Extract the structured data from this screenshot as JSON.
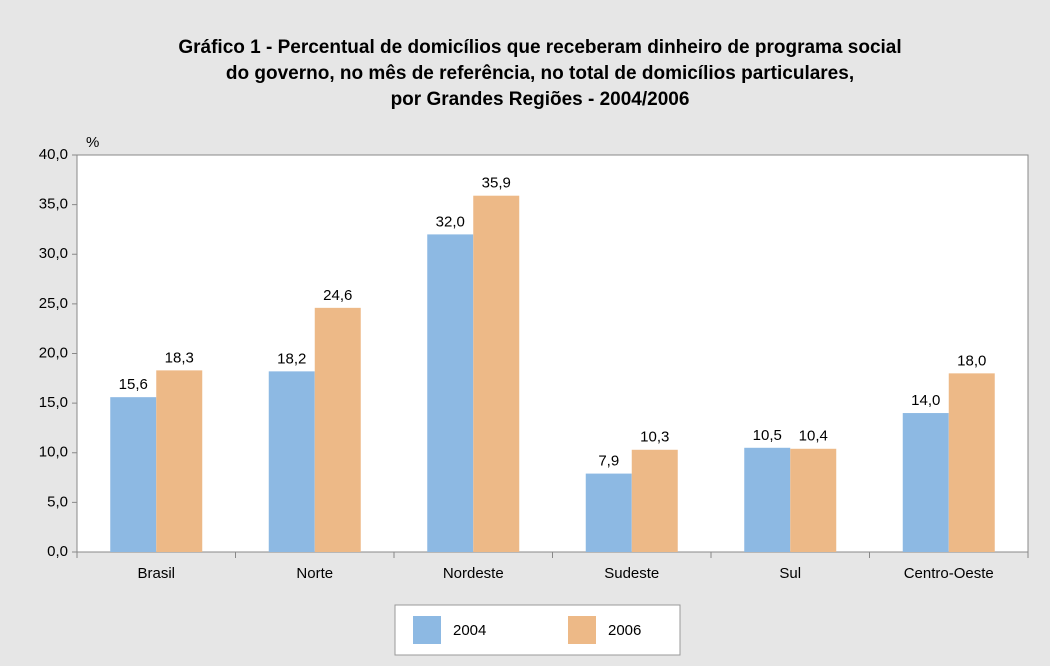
{
  "chart_data": {
    "type": "bar",
    "title": [
      "Gráfico 1 - Percentual de domicílios que receberam dinheiro de programa social",
      "do governo, no mês de referência, no total de domicílios particulares,",
      "por Grandes Regiões - 2004/2006"
    ],
    "y_label": "%",
    "categories": [
      "Brasil",
      "Norte",
      "Nordeste",
      "Sudeste",
      "Sul",
      "Centro-Oeste"
    ],
    "series": [
      {
        "name": "2004",
        "color": "#8db9e3",
        "values": [
          15.6,
          18.2,
          32.0,
          7.9,
          10.5,
          14.0
        ],
        "value_labels": [
          "15,6",
          "18,2",
          "32,0",
          "7,9",
          "10,5",
          "14,0"
        ]
      },
      {
        "name": "2006",
        "color": "#edb987",
        "values": [
          18.3,
          24.6,
          35.9,
          10.3,
          10.4,
          18.0
        ],
        "value_labels": [
          "18,3",
          "24,6",
          "35,9",
          "10,3",
          "10,4",
          "18,0"
        ]
      }
    ],
    "ylim": [
      0,
      40
    ],
    "yticks": [
      {
        "value": 0,
        "label": "0,0"
      },
      {
        "value": 5,
        "label": "5,0"
      },
      {
        "value": 10,
        "label": "10,0"
      },
      {
        "value": 15,
        "label": "15,0"
      },
      {
        "value": 20,
        "label": "20,0"
      },
      {
        "value": 25,
        "label": "25,0"
      },
      {
        "value": 30,
        "label": "30,0"
      },
      {
        "value": 35,
        "label": "35,0"
      },
      {
        "value": 40,
        "label": "40,0"
      }
    ],
    "grid": false
  }
}
